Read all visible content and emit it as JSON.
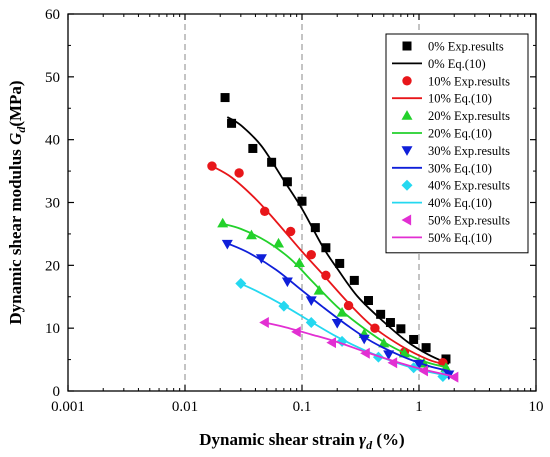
{
  "chart_data": {
    "type": "scatter",
    "x_scale": "log",
    "xlim": [
      0.001,
      10
    ],
    "ylim": [
      0,
      60
    ],
    "x_ticks": [
      0.001,
      0.01,
      0.1,
      1,
      10
    ],
    "x_tick_labels": [
      "0.001",
      "0.01",
      "0.1",
      "1",
      "10"
    ],
    "y_ticks": [
      0,
      10,
      20,
      30,
      40,
      50,
      60
    ],
    "y_tick_labels": [
      "0",
      "10",
      "20",
      "30",
      "40",
      "50",
      "60"
    ],
    "xlabel": {
      "main": "Dynamic shear strain ",
      "symbol": "γ",
      "sub": "d",
      "unit": " (%)"
    },
    "ylabel": {
      "main": "Dynamic shear modulus ",
      "symbol": "G",
      "sub": "d",
      "unit": "(MPa)"
    },
    "grid": "vertical dashed at major x ticks",
    "legend_position": "top-right",
    "series": [
      {
        "color": "#000000",
        "marker": "square",
        "legend_points": "0% Exp.results",
        "legend_line": "0% Eq.(10)",
        "points": [
          [
            0.022,
            46.7
          ],
          [
            0.025,
            42.6
          ],
          [
            0.038,
            38.6
          ],
          [
            0.055,
            36.4
          ],
          [
            0.075,
            33.3
          ],
          [
            0.1,
            30.2
          ],
          [
            0.13,
            26.0
          ],
          [
            0.16,
            22.8
          ],
          [
            0.21,
            20.3
          ],
          [
            0.28,
            17.6
          ],
          [
            0.37,
            14.4
          ],
          [
            0.47,
            12.2
          ],
          [
            0.57,
            10.9
          ],
          [
            0.7,
            9.9
          ],
          [
            0.9,
            8.2
          ],
          [
            1.15,
            6.9
          ],
          [
            1.7,
            5.1
          ]
        ],
        "curve": [
          [
            0.023,
            43.6
          ],
          [
            0.03,
            42.3
          ],
          [
            0.045,
            39.0
          ],
          [
            0.07,
            33.5
          ],
          [
            0.1,
            29.0
          ],
          [
            0.15,
            23.0
          ],
          [
            0.2,
            19.5
          ],
          [
            0.3,
            15.0
          ],
          [
            0.5,
            11.0
          ],
          [
            0.8,
            7.8
          ],
          [
            1.2,
            5.8
          ],
          [
            1.8,
            4.3
          ]
        ]
      },
      {
        "color": "#e8161a",
        "marker": "circle",
        "legend_points": "10% Exp.results",
        "legend_line": "10% Eq.(10)",
        "points": [
          [
            0.017,
            35.8
          ],
          [
            0.029,
            34.7
          ],
          [
            0.048,
            28.6
          ],
          [
            0.08,
            25.4
          ],
          [
            0.12,
            21.7
          ],
          [
            0.16,
            18.4
          ],
          [
            0.25,
            13.6
          ],
          [
            0.42,
            10.0
          ],
          [
            0.75,
            6.2
          ],
          [
            1.6,
            4.5
          ]
        ],
        "curve": [
          [
            0.017,
            35.8
          ],
          [
            0.025,
            34.0
          ],
          [
            0.04,
            30.6
          ],
          [
            0.06,
            27.0
          ],
          [
            0.1,
            22.2
          ],
          [
            0.15,
            18.6
          ],
          [
            0.25,
            14.0
          ],
          [
            0.4,
            10.3
          ],
          [
            0.7,
            7.2
          ],
          [
            1.2,
            5.0
          ],
          [
            1.7,
            4.2
          ]
        ]
      },
      {
        "color": "#23d12b",
        "marker": "triangle-up",
        "legend_points": "20% Exp.results",
        "legend_line": "20% Eq.(10)",
        "points": [
          [
            0.021,
            26.7
          ],
          [
            0.037,
            24.8
          ],
          [
            0.063,
            23.5
          ],
          [
            0.095,
            20.4
          ],
          [
            0.14,
            16.0
          ],
          [
            0.22,
            12.5
          ],
          [
            0.34,
            9.1
          ],
          [
            0.5,
            7.6
          ],
          [
            0.75,
            6.0
          ],
          [
            1.1,
            4.4
          ],
          [
            1.7,
            3.7
          ]
        ],
        "curve": [
          [
            0.021,
            26.6
          ],
          [
            0.03,
            25.8
          ],
          [
            0.05,
            23.8
          ],
          [
            0.08,
            21.0
          ],
          [
            0.12,
            17.6
          ],
          [
            0.2,
            13.4
          ],
          [
            0.3,
            10.7
          ],
          [
            0.5,
            7.8
          ],
          [
            0.8,
            5.8
          ],
          [
            1.2,
            4.5
          ],
          [
            1.8,
            3.7
          ]
        ]
      },
      {
        "color": "#0f1fd9",
        "marker": "triangle-down",
        "legend_points": "30% Exp.results",
        "legend_line": "30% Eq.(10)",
        "points": [
          [
            0.023,
            23.4
          ],
          [
            0.045,
            21.1
          ],
          [
            0.075,
            17.4
          ],
          [
            0.12,
            14.4
          ],
          [
            0.2,
            10.8
          ],
          [
            0.34,
            8.3
          ],
          [
            0.55,
            5.8
          ],
          [
            1.0,
            4.3
          ],
          [
            1.8,
            2.6
          ]
        ],
        "curve": [
          [
            0.023,
            23.5
          ],
          [
            0.035,
            22.0
          ],
          [
            0.06,
            19.3
          ],
          [
            0.1,
            16.0
          ],
          [
            0.15,
            13.4
          ],
          [
            0.25,
            10.3
          ],
          [
            0.4,
            7.8
          ],
          [
            0.7,
            5.6
          ],
          [
            1.2,
            4.0
          ],
          [
            1.8,
            3.2
          ]
        ]
      },
      {
        "color": "#24d8f0",
        "marker": "diamond",
        "legend_points": "40% Exp.results",
        "legend_line": "40% Eq.(10)",
        "points": [
          [
            0.03,
            17.1
          ],
          [
            0.07,
            13.5
          ],
          [
            0.12,
            10.9
          ],
          [
            0.22,
            7.9
          ],
          [
            0.45,
            5.4
          ],
          [
            0.9,
            3.7
          ],
          [
            1.6,
            2.3
          ]
        ],
        "curve": [
          [
            0.028,
            17.3
          ],
          [
            0.04,
            16.0
          ],
          [
            0.07,
            13.6
          ],
          [
            0.12,
            11.0
          ],
          [
            0.2,
            8.6
          ],
          [
            0.35,
            6.4
          ],
          [
            0.6,
            4.7
          ],
          [
            1.0,
            3.4
          ],
          [
            1.6,
            2.6
          ]
        ]
      },
      {
        "color": "#e22fd2",
        "marker": "triangle-left",
        "legend_points": "50% Exp.results",
        "legend_line": "50% Eq.(10)",
        "points": [
          [
            0.048,
            10.9
          ],
          [
            0.09,
            9.4
          ],
          [
            0.18,
            7.7
          ],
          [
            0.35,
            6.0
          ],
          [
            0.6,
            4.5
          ],
          [
            1.1,
            3.2
          ],
          [
            2.0,
            2.2
          ]
        ],
        "curve": [
          [
            0.045,
            11.0
          ],
          [
            0.07,
            10.2
          ],
          [
            0.12,
            9.0
          ],
          [
            0.2,
            7.8
          ],
          [
            0.35,
            6.2
          ],
          [
            0.6,
            4.8
          ],
          [
            1.0,
            3.6
          ],
          [
            1.6,
            2.7
          ],
          [
            2.0,
            2.3
          ]
        ]
      }
    ]
  }
}
